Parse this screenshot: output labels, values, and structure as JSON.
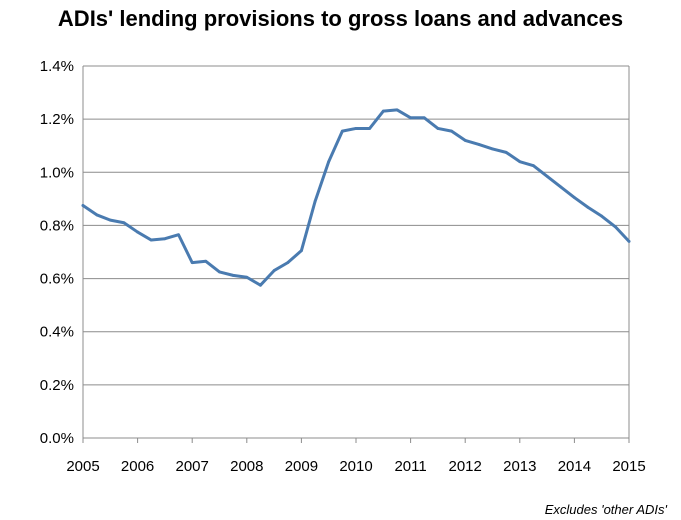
{
  "chart_data": {
    "type": "line",
    "title": "ADIs' lending provisions to gross loans and advances",
    "note": "Excludes 'other ADIs'",
    "xlabel": "",
    "ylabel": "",
    "ylim": [
      0,
      1.4
    ],
    "xlim": [
      2005,
      2015
    ],
    "grid": true,
    "legend": "none",
    "y_ticks": [
      {
        "value": 0.0,
        "label": "0.0%"
      },
      {
        "value": 0.2,
        "label": "0.2%"
      },
      {
        "value": 0.4,
        "label": "0.4%"
      },
      {
        "value": 0.6,
        "label": "0.6%"
      },
      {
        "value": 0.8,
        "label": "0.8%"
      },
      {
        "value": 1.0,
        "label": "1.0%"
      },
      {
        "value": 1.2,
        "label": "1.2%"
      },
      {
        "value": 1.4,
        "label": "1.4%"
      }
    ],
    "x_ticks": [
      "2005",
      "2006",
      "2007",
      "2008",
      "2009",
      "2010",
      "2011",
      "2012",
      "2013",
      "2014",
      "2015"
    ],
    "color": "#4a7bb0",
    "series": [
      {
        "x": [
          2005.0,
          2005.25,
          2005.5,
          2005.75,
          2006.0,
          2006.25,
          2006.5,
          2006.75,
          2007.0,
          2007.25,
          2007.5,
          2007.75,
          2008.0,
          2008.25,
          2008.5,
          2008.75,
          2009.0,
          2009.25,
          2009.5,
          2009.75,
          2010.0,
          2010.25,
          2010.5,
          2010.75,
          2011.0,
          2011.25,
          2011.5,
          2011.75,
          2012.0,
          2012.25,
          2012.5,
          2012.75,
          2013.0,
          2013.25,
          2013.5,
          2013.75,
          2014.0,
          2014.25,
          2014.5,
          2014.75,
          2015.0
        ],
        "values": [
          0.875,
          0.84,
          0.82,
          0.81,
          0.775,
          0.745,
          0.75,
          0.765,
          0.66,
          0.665,
          0.625,
          0.612,
          0.605,
          0.575,
          0.63,
          0.66,
          0.705,
          0.89,
          1.04,
          1.155,
          1.165,
          1.165,
          1.23,
          1.235,
          1.205,
          1.205,
          1.165,
          1.155,
          1.12,
          1.105,
          1.088,
          1.075,
          1.04,
          1.025,
          0.985,
          0.945,
          0.905,
          0.868,
          0.835,
          0.795,
          0.74
        ]
      }
    ]
  }
}
